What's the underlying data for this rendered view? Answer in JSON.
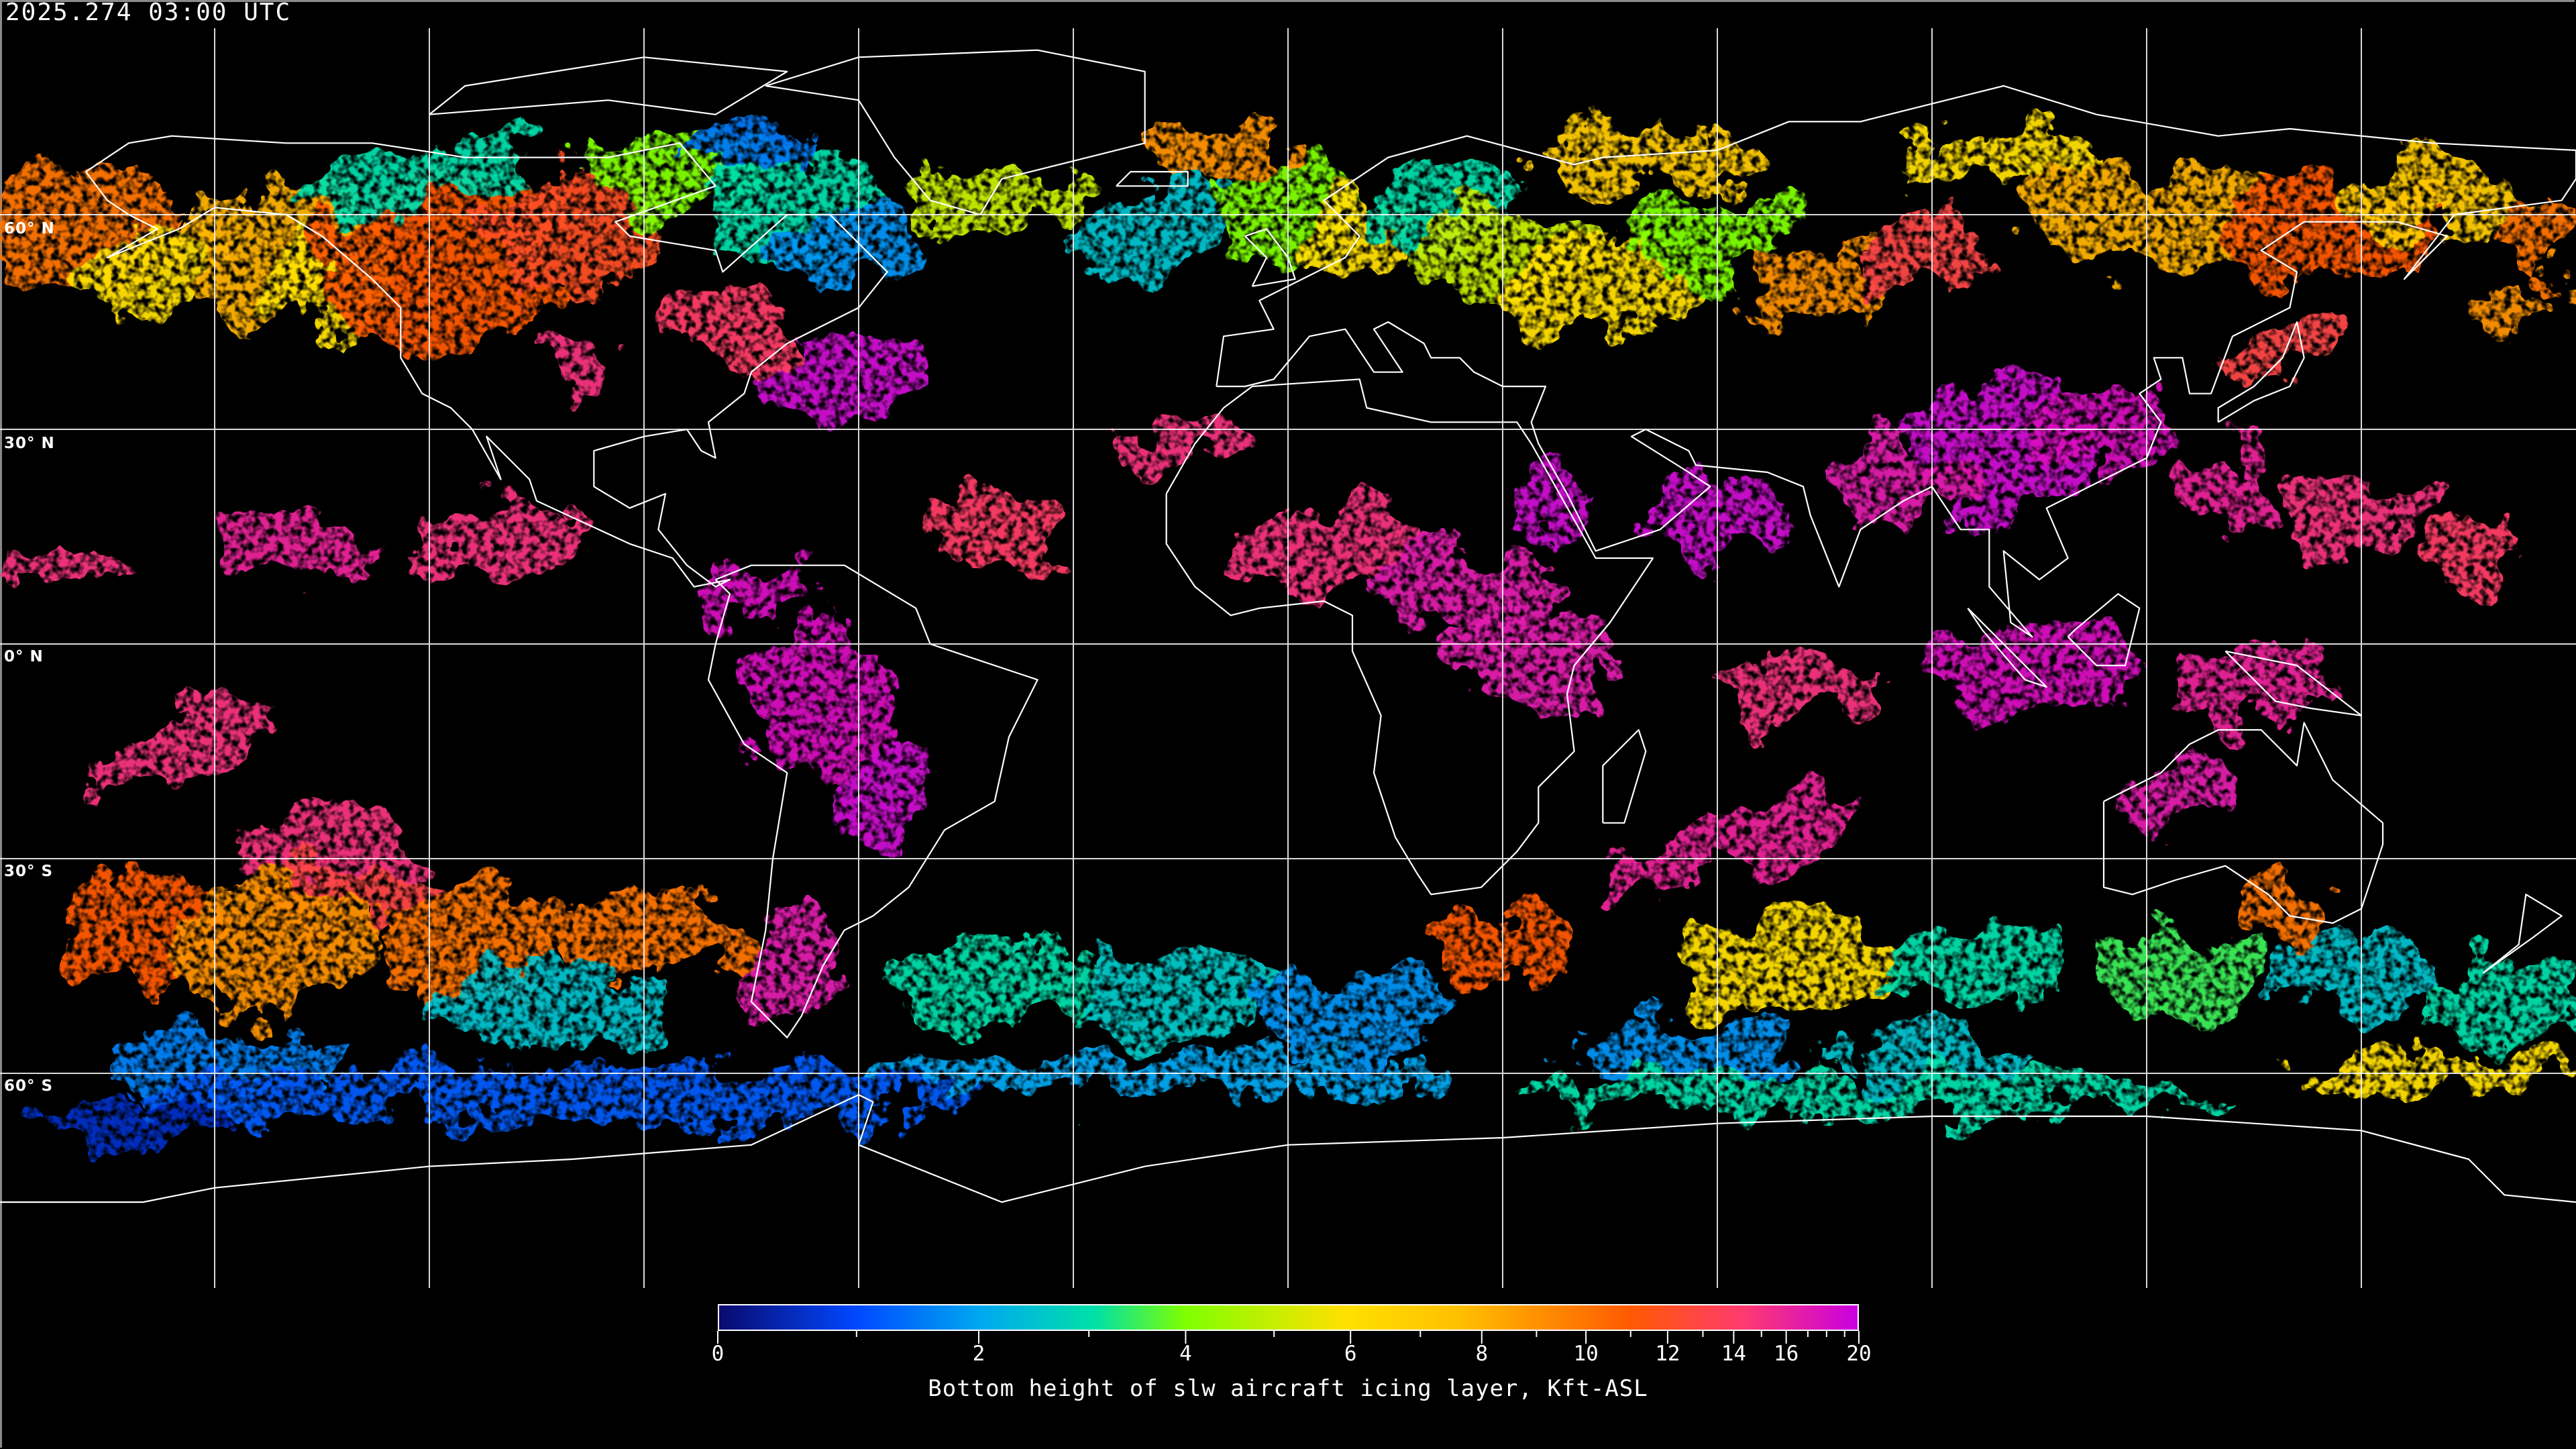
{
  "header": {
    "timestamp": "2025.274 03:00 UTC"
  },
  "map": {
    "projection": "equirectangular",
    "lat_labels": [
      "60° N",
      "30° N",
      "0° N",
      "30° S",
      "60° S"
    ],
    "lat_values": [
      60,
      30,
      0,
      -30,
      -60
    ],
    "lon_gridlines": [
      -150,
      -120,
      -90,
      -60,
      -30,
      0,
      30,
      60,
      90,
      120,
      150
    ],
    "coastline_color": "#ffffff",
    "grid_color": "#ffffff",
    "no_data_color": "#000000"
  },
  "colorbar": {
    "title": "Bottom height of slw aircraft icing layer, Kft-ASL",
    "range": [
      0,
      20
    ],
    "major_ticks": [
      "0",
      "2",
      "4",
      "6",
      "8",
      "10",
      "12",
      "14",
      "16",
      "20"
    ],
    "minor_ticks": [
      1,
      3,
      5,
      7,
      9,
      11,
      13,
      15,
      17,
      18,
      19
    ],
    "colormap": [
      "#0a0a6e",
      "#0048ff",
      "#00a8f0",
      "#00e0a8",
      "#80ff00",
      "#ffe000",
      "#ffc000",
      "#ff5a00",
      "#ff3a70",
      "#c800e0"
    ]
  }
}
